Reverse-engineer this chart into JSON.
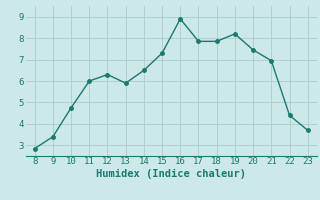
{
  "x": [
    8,
    9,
    10,
    11,
    12,
    13,
    14,
    15,
    16,
    17,
    18,
    19,
    20,
    21,
    22,
    23
  ],
  "y": [
    2.85,
    3.4,
    4.75,
    6.0,
    6.3,
    5.9,
    6.5,
    7.3,
    8.9,
    7.85,
    7.85,
    8.2,
    7.45,
    6.95,
    4.4,
    3.7
  ],
  "line_color": "#1a7a6e",
  "marker": "o",
  "marker_size": 2.5,
  "linewidth": 1.0,
  "xlabel": "Humidex (Indice chaleur)",
  "xlim": [
    7.5,
    23.5
  ],
  "ylim": [
    2.5,
    9.5
  ],
  "xticks": [
    8,
    9,
    10,
    11,
    12,
    13,
    14,
    15,
    16,
    17,
    18,
    19,
    20,
    21,
    22,
    23
  ],
  "yticks": [
    3,
    4,
    5,
    6,
    7,
    8,
    9
  ],
  "bg_color": "#cce8e8",
  "grid_color": "#aacccc",
  "tick_label_fontsize": 6.5,
  "xlabel_fontsize": 7.5
}
